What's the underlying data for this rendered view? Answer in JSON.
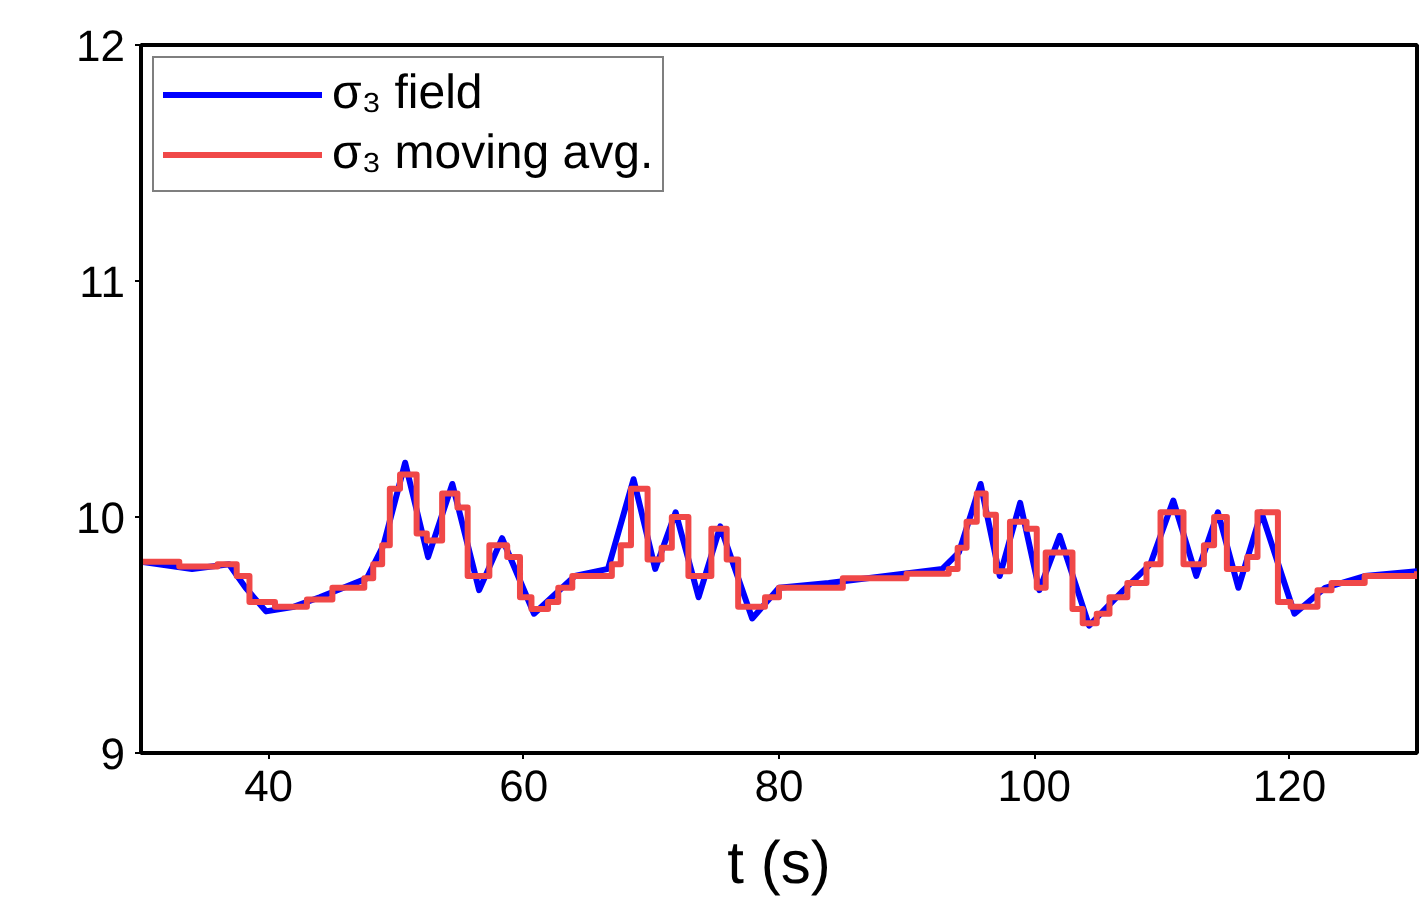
{
  "chart_data": {
    "type": "line",
    "xlabel": "t (s)",
    "xlim": [
      30,
      130
    ],
    "xticks": [
      40,
      60,
      80,
      100,
      120
    ],
    "ylim": [
      9,
      12
    ],
    "yticks": [
      9,
      10,
      11,
      12
    ],
    "grid": false,
    "legend": "top left",
    "marker": "none",
    "line_style": "solid",
    "series": [
      {
        "name": "σ₃ field",
        "color": "#0000ff",
        "x": [
          30,
          34,
          36.9,
          38.2,
          39.8,
          42,
          44,
          47.7,
          49,
          50.7,
          52.5,
          54.4,
          56.5,
          58.3,
          60.8,
          64,
          66.6,
          68.6,
          70.3,
          71.9,
          73.7,
          75.4,
          77.9,
          80,
          83.9,
          92.8,
          94.1,
          95.8,
          97.3,
          98.9,
          100.4,
          102,
          104.3,
          107,
          109.1,
          110.9,
          112.7,
          114.4,
          116,
          117.8,
          120.4,
          122.8,
          125.9,
          130
        ],
        "values": [
          9.81,
          9.78,
          9.8,
          9.7,
          9.6,
          9.62,
          9.66,
          9.74,
          9.88,
          10.23,
          9.83,
          10.14,
          9.69,
          9.91,
          9.59,
          9.75,
          9.78,
          10.16,
          9.78,
          10.02,
          9.66,
          9.96,
          9.57,
          9.7,
          9.72,
          9.78,
          9.85,
          10.14,
          9.75,
          10.06,
          9.69,
          9.92,
          9.54,
          9.69,
          9.8,
          10.07,
          9.75,
          10.02,
          9.7,
          10.02,
          9.59,
          9.7,
          9.75,
          9.77
        ]
      },
      {
        "name": "σ₃ moving avg.",
        "color": "#f04848",
        "type": "step",
        "x": [
          30,
          33,
          36,
          37.5,
          38.5,
          40.5,
          43,
          45,
          47.5,
          48.2,
          48.9,
          49.5,
          50.3,
          51.6,
          52.4,
          53.6,
          54.8,
          55.6,
          57.3,
          58.7,
          59.7,
          60.6,
          61.9,
          62.7,
          63.8,
          66.9,
          67.6,
          68.4,
          69.7,
          70.8,
          71.6,
          72.9,
          74.7,
          75.9,
          76.8,
          78.9,
          80,
          85,
          90,
          93.3,
          94,
          94.7,
          95.5,
          96.2,
          97,
          98.1,
          99.4,
          100.2,
          100.9,
          101.7,
          103,
          103.8,
          104.9,
          105.9,
          107.3,
          108.8,
          109.9,
          111.7,
          113.3,
          114.1,
          115.1,
          116.7,
          117.5,
          119.1,
          120.1,
          122.2,
          123.3,
          125.9,
          130
        ],
        "values": [
          9.81,
          9.79,
          9.8,
          9.75,
          9.64,
          9.62,
          9.65,
          9.7,
          9.74,
          9.8,
          9.88,
          10.12,
          10.18,
          9.93,
          9.9,
          10.1,
          10.04,
          9.75,
          9.88,
          9.83,
          9.66,
          9.61,
          9.64,
          9.7,
          9.75,
          9.8,
          9.88,
          10.12,
          9.82,
          9.87,
          10,
          9.75,
          9.95,
          9.82,
          9.62,
          9.66,
          9.7,
          9.74,
          9.76,
          9.78,
          9.87,
          9.98,
          10.1,
          10.01,
          9.77,
          9.98,
          9.95,
          9.7,
          9.85,
          9.85,
          9.61,
          9.55,
          9.59,
          9.66,
          9.72,
          9.8,
          10.02,
          9.8,
          9.88,
          10,
          9.78,
          9.83,
          10.02,
          9.64,
          9.62,
          9.69,
          9.72,
          9.75,
          9.77
        ]
      }
    ]
  }
}
